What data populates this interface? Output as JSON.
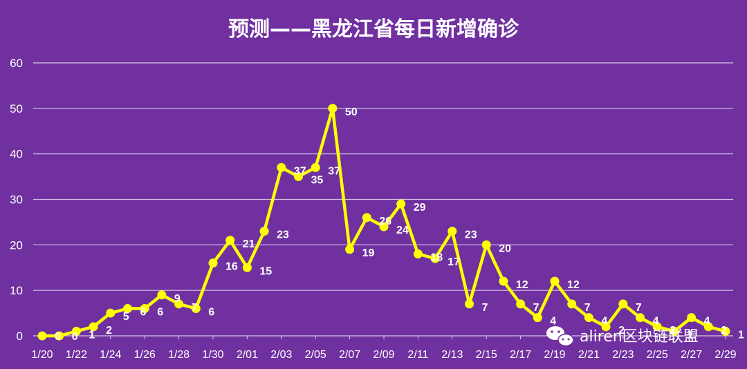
{
  "chart_data": {
    "type": "line",
    "title": "预测——黑龙江省每日新增确诊",
    "xlabel": "",
    "ylabel": "",
    "ylim": [
      0,
      60
    ],
    "yticks": [
      0,
      10,
      20,
      30,
      40,
      50,
      60
    ],
    "grid": true,
    "legend": "none",
    "x": [
      "1/20",
      "1/21",
      "1/22",
      "1/23",
      "1/24",
      "1/25",
      "1/26",
      "1/27",
      "1/28",
      "1/29",
      "1/30",
      "1/31",
      "2/01",
      "2/02",
      "2/03",
      "2/04",
      "2/05",
      "2/06",
      "2/07",
      "2/08",
      "2/09",
      "2/10",
      "2/11",
      "2/12",
      "2/13",
      "2/14",
      "2/15",
      "2/16",
      "2/17",
      "2/18",
      "2/19",
      "2/20",
      "2/21",
      "2/22",
      "2/23",
      "2/24",
      "2/25",
      "2/26",
      "2/27",
      "2/28",
      "2/29"
    ],
    "xtick_labels": [
      "1/20",
      "1/22",
      "1/24",
      "1/26",
      "1/28",
      "1/30",
      "2/01",
      "2/03",
      "2/05",
      "2/07",
      "2/09",
      "2/11",
      "2/13",
      "2/15",
      "2/17",
      "2/19",
      "2/21",
      "2/23",
      "2/25",
      "2/27",
      "2/29"
    ],
    "values": [
      0,
      0,
      1,
      2,
      5,
      6,
      6,
      9,
      7,
      6,
      16,
      21,
      15,
      23,
      37,
      35,
      37,
      50,
      19,
      26,
      24,
      29,
      18,
      17,
      23,
      7,
      20,
      12,
      7,
      4,
      12,
      7,
      4,
      2,
      7,
      4,
      2,
      1,
      4,
      2,
      1
    ],
    "data_labels": [
      "0",
      "0",
      "1",
      "2",
      "5",
      "6",
      "6",
      "9",
      "7",
      "6",
      "16",
      "21",
      "15",
      "23",
      "37",
      "35",
      "37",
      "50",
      "19",
      "26",
      "24",
      "29",
      "18",
      "17",
      "23",
      "7",
      "20",
      "12",
      "7",
      "4",
      "12",
      "7",
      "4",
      "2",
      "7",
      "4",
      "2",
      "1",
      "4",
      "2",
      "1"
    ],
    "series_color": "#ffff00",
    "gridline_color": "#d8c8e8",
    "background_color": "#7030a0"
  },
  "watermark": {
    "icon": "wechat-icon",
    "text": "aliren区块链联盟"
  }
}
